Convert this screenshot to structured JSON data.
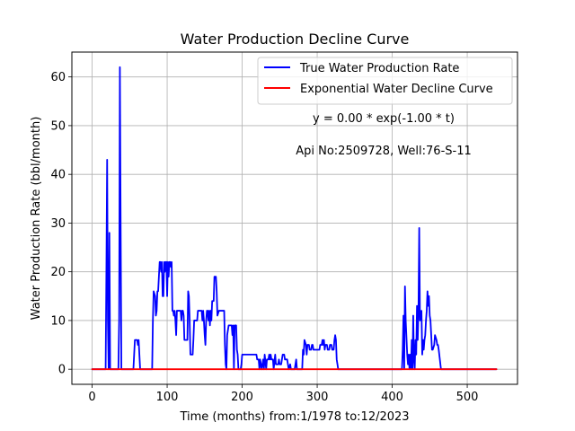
{
  "chart_data": {
    "type": "line",
    "title": "Water Production Decline Curve",
    "xlabel": "Time (months) from:1/1978 to:12/2023",
    "ylabel": "Water Production Rate (bbl/month)",
    "xlim": [
      -27,
      567
    ],
    "ylim": [
      -3.1,
      65.1
    ],
    "xticks": [
      0,
      100,
      200,
      300,
      400,
      500
    ],
    "yticks": [
      0,
      10,
      20,
      30,
      40,
      50,
      60
    ],
    "grid": true,
    "legend_position": "top-right",
    "annotations": [
      "y = 0.00 * exp(-1.00 * t)",
      "Api No:2509728, Well:76-S-11"
    ],
    "series": [
      {
        "name": "True Water Production Rate",
        "color": "#0000ff",
        "points": [
          [
            0,
            0
          ],
          [
            18,
            0
          ],
          [
            19,
            20
          ],
          [
            20,
            43
          ],
          [
            21,
            10
          ],
          [
            22,
            0
          ],
          [
            23,
            28
          ],
          [
            24,
            0
          ],
          [
            35,
            0
          ],
          [
            36,
            10
          ],
          [
            37,
            62
          ],
          [
            38,
            30
          ],
          [
            39,
            0
          ],
          [
            55,
            0
          ],
          [
            56,
            3
          ],
          [
            57,
            6
          ],
          [
            60,
            6
          ],
          [
            61,
            5
          ],
          [
            62,
            6
          ],
          [
            63,
            3
          ],
          [
            64,
            0
          ],
          [
            80,
            0
          ],
          [
            81,
            10
          ],
          [
            82,
            16
          ],
          [
            84,
            15
          ],
          [
            85,
            11
          ],
          [
            86,
            12
          ],
          [
            87,
            16
          ],
          [
            88,
            16
          ],
          [
            89,
            19
          ],
          [
            90,
            22
          ],
          [
            91,
            22
          ],
          [
            92,
            20
          ],
          [
            93,
            22
          ],
          [
            94,
            15
          ],
          [
            95,
            15
          ],
          [
            96,
            22
          ],
          [
            97,
            20
          ],
          [
            98,
            22
          ],
          [
            99,
            22
          ],
          [
            100,
            15
          ],
          [
            101,
            22
          ],
          [
            102,
            19
          ],
          [
            103,
            22
          ],
          [
            104,
            22
          ],
          [
            105,
            21
          ],
          [
            106,
            22
          ],
          [
            107,
            12
          ],
          [
            108,
            12
          ],
          [
            109,
            11
          ],
          [
            110,
            12
          ],
          [
            111,
            10
          ],
          [
            112,
            7
          ],
          [
            113,
            12
          ],
          [
            118,
            12
          ],
          [
            119,
            10
          ],
          [
            120,
            12
          ],
          [
            121,
            12
          ],
          [
            122,
            11
          ],
          [
            123,
            6
          ],
          [
            127,
            6
          ],
          [
            128,
            16
          ],
          [
            129,
            15
          ],
          [
            130,
            10
          ],
          [
            131,
            3
          ],
          [
            134,
            3
          ],
          [
            135,
            6
          ],
          [
            136,
            10
          ],
          [
            137,
            10
          ],
          [
            140,
            10
          ],
          [
            141,
            12
          ],
          [
            146,
            12
          ],
          [
            147,
            10
          ],
          [
            148,
            12
          ],
          [
            149,
            10
          ],
          [
            150,
            7
          ],
          [
            151,
            5
          ],
          [
            152,
            10
          ],
          [
            153,
            12
          ],
          [
            154,
            12
          ],
          [
            155,
            10
          ],
          [
            156,
            12
          ],
          [
            157,
            9
          ],
          [
            158,
            12
          ],
          [
            159,
            10
          ],
          [
            160,
            14
          ],
          [
            162,
            14
          ],
          [
            163,
            19
          ],
          [
            165,
            19
          ],
          [
            166,
            16
          ],
          [
            167,
            11
          ],
          [
            169,
            12
          ],
          [
            176,
            12
          ],
          [
            177,
            5
          ],
          [
            178,
            1
          ],
          [
            179,
            0
          ],
          [
            180,
            7
          ],
          [
            181,
            8
          ],
          [
            182,
            9
          ],
          [
            186,
            9
          ],
          [
            187,
            7
          ],
          [
            188,
            9
          ],
          [
            189,
            0
          ],
          [
            190,
            9
          ],
          [
            192,
            9
          ],
          [
            193,
            4
          ],
          [
            194,
            3
          ],
          [
            195,
            0
          ],
          [
            198,
            0
          ],
          [
            199,
            1
          ],
          [
            200,
            3
          ],
          [
            219,
            3
          ],
          [
            220,
            2
          ],
          [
            222,
            2
          ],
          [
            223,
            0
          ],
          [
            224,
            2
          ],
          [
            226,
            0
          ],
          [
            228,
            2
          ],
          [
            229,
            0
          ],
          [
            230,
            3
          ],
          [
            232,
            0
          ],
          [
            233,
            2
          ],
          [
            235,
            2
          ],
          [
            236,
            3
          ],
          [
            237,
            2
          ],
          [
            238,
            3
          ],
          [
            239,
            2
          ],
          [
            241,
            2
          ],
          [
            242,
            0
          ],
          [
            244,
            3
          ],
          [
            245,
            1
          ],
          [
            248,
            1
          ],
          [
            249,
            2
          ],
          [
            250,
            1
          ],
          [
            252,
            1
          ],
          [
            253,
            2
          ],
          [
            254,
            3
          ],
          [
            256,
            3
          ],
          [
            257,
            2
          ],
          [
            258,
            2
          ],
          [
            260,
            2
          ],
          [
            261,
            1
          ],
          [
            262,
            0
          ],
          [
            264,
            1
          ],
          [
            265,
            0
          ],
          [
            270,
            0
          ],
          [
            271,
            1
          ],
          [
            272,
            2
          ],
          [
            273,
            0
          ],
          [
            280,
            0
          ],
          [
            281,
            4
          ],
          [
            282,
            3
          ],
          [
            283,
            6
          ],
          [
            285,
            5
          ],
          [
            286,
            3
          ],
          [
            287,
            5
          ],
          [
            289,
            5
          ],
          [
            290,
            4
          ],
          [
            292,
            4
          ],
          [
            293,
            5
          ],
          [
            294,
            5
          ],
          [
            295,
            4
          ],
          [
            303,
            4
          ],
          [
            304,
            5
          ],
          [
            306,
            5
          ],
          [
            307,
            6
          ],
          [
            308,
            5
          ],
          [
            309,
            6
          ],
          [
            310,
            4
          ],
          [
            311,
            5
          ],
          [
            313,
            5
          ],
          [
            314,
            4
          ],
          [
            316,
            4
          ],
          [
            317,
            5
          ],
          [
            319,
            5
          ],
          [
            320,
            4
          ],
          [
            322,
            4
          ],
          [
            323,
            6
          ],
          [
            324,
            7
          ],
          [
            325,
            6
          ],
          [
            326,
            2
          ],
          [
            327,
            1
          ],
          [
            328,
            0
          ],
          [
            413,
            0
          ],
          [
            414,
            4
          ],
          [
            415,
            11
          ],
          [
            416,
            0
          ],
          [
            417,
            17
          ],
          [
            418,
            10
          ],
          [
            420,
            3
          ],
          [
            421,
            1
          ],
          [
            422,
            3
          ],
          [
            423,
            0
          ],
          [
            424,
            3
          ],
          [
            425,
            0
          ],
          [
            426,
            6
          ],
          [
            427,
            0
          ],
          [
            428,
            11
          ],
          [
            429,
            2
          ],
          [
            430,
            0
          ],
          [
            431,
            6
          ],
          [
            432,
            3
          ],
          [
            433,
            13
          ],
          [
            434,
            6
          ],
          [
            435,
            12
          ],
          [
            436,
            29
          ],
          [
            437,
            10
          ],
          [
            439,
            12
          ],
          [
            440,
            3
          ],
          [
            441,
            6
          ],
          [
            442,
            4
          ],
          [
            443,
            6
          ],
          [
            444,
            7
          ],
          [
            445,
            10
          ],
          [
            446,
            12
          ],
          [
            447,
            16
          ],
          [
            448,
            13
          ],
          [
            449,
            15
          ],
          [
            450,
            11
          ],
          [
            451,
            10
          ],
          [
            453,
            4
          ],
          [
            454,
            4
          ],
          [
            456,
            5
          ],
          [
            457,
            7
          ],
          [
            459,
            6
          ],
          [
            460,
            5
          ],
          [
            461,
            5
          ],
          [
            462,
            4
          ],
          [
            465,
            0
          ],
          [
            539,
            0
          ]
        ]
      },
      {
        "name": "Exponential Water Decline Curve",
        "color": "#ff0000",
        "points": [
          [
            0,
            0
          ],
          [
            539,
            0
          ]
        ]
      }
    ]
  }
}
